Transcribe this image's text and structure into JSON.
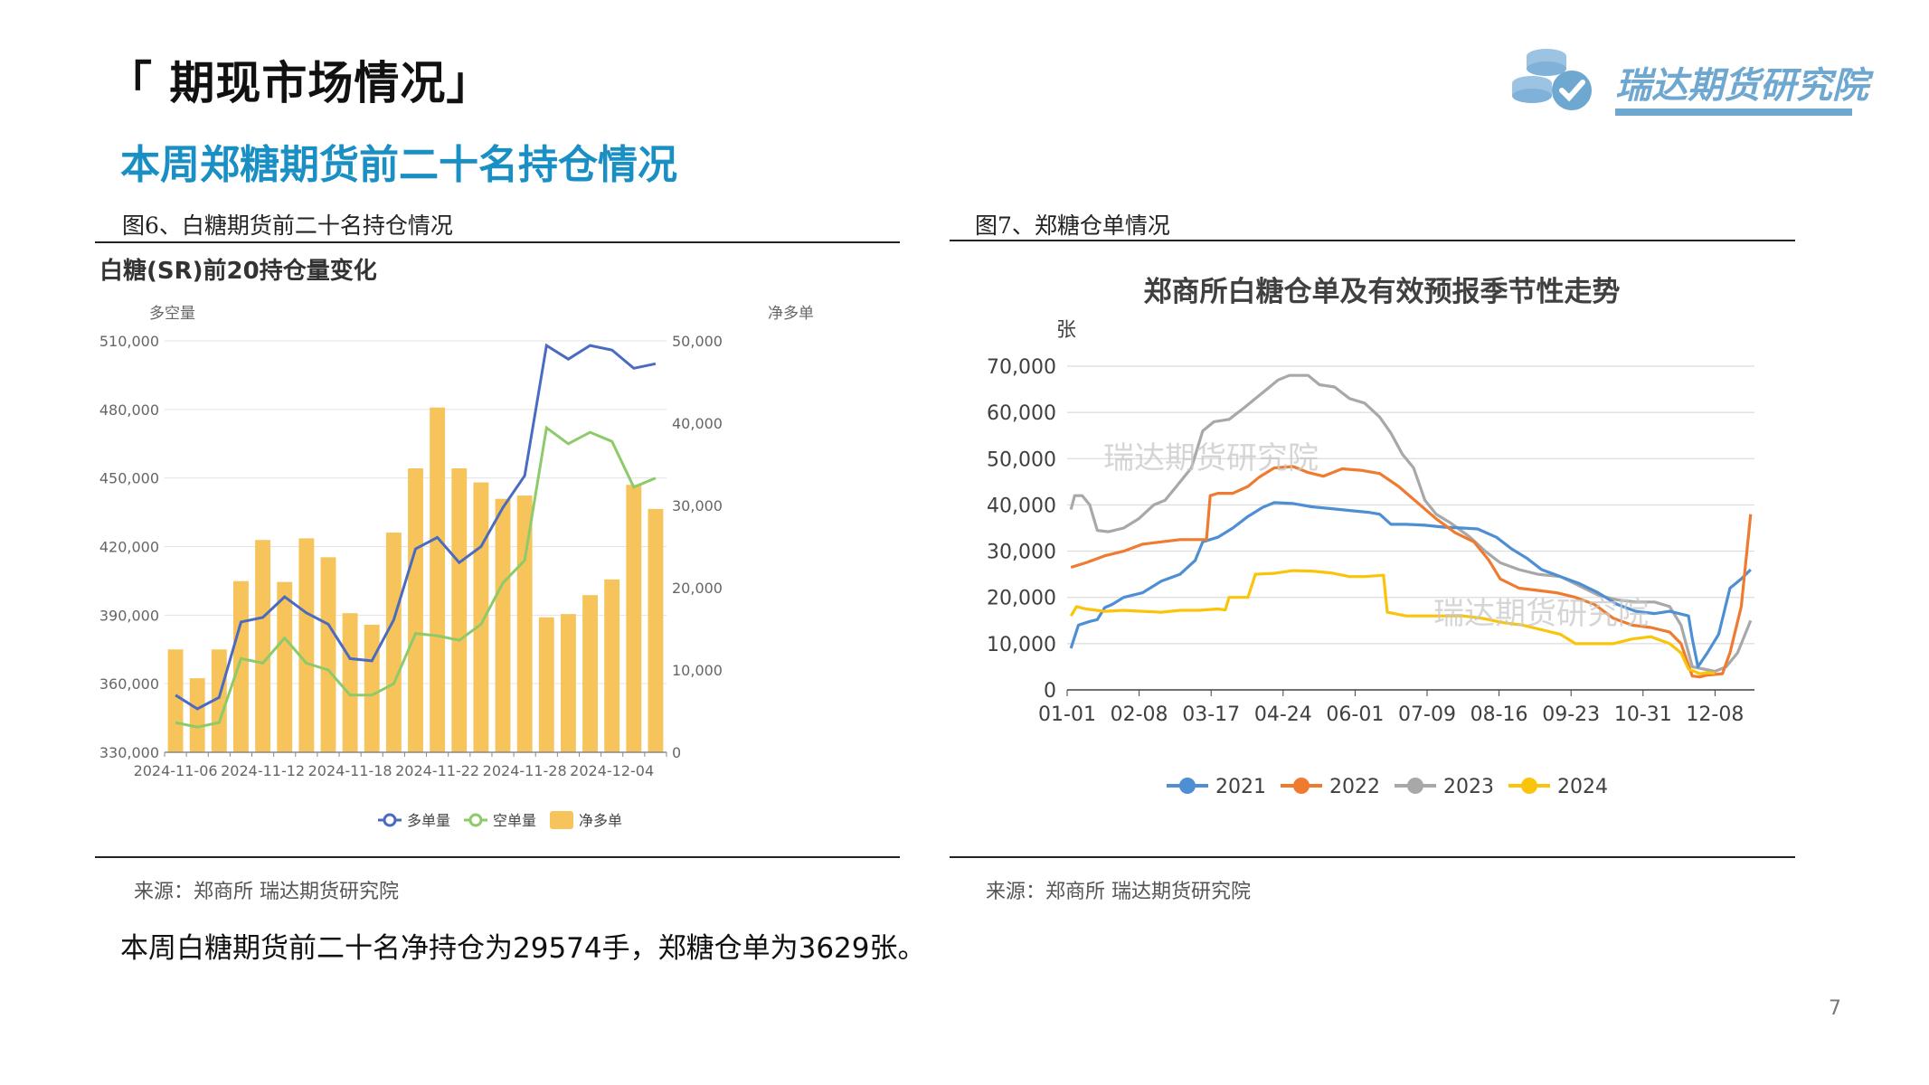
{
  "header": {
    "title": "「 期现市场情况」",
    "subtitle": "本周郑糖期货前二十名持仓情况",
    "logo_text": "瑞达期货研究院"
  },
  "left_figure": {
    "caption": "图6、白糖期货前二十名持仓情况",
    "source": "来源：郑商所   瑞达期货研究院"
  },
  "right_figure": {
    "caption": "图7、郑糖仓单情况",
    "source": "来源：郑商所  瑞达期货研究院",
    "watermark": "瑞达期货研究院"
  },
  "summary": "本周白糖期货前二十名净持仓为29574手，郑糖仓单为3629张。",
  "page_number": "7",
  "colors": {
    "accent": "#1a8fc4",
    "bar": "#f7c45b",
    "long": "#4a6bbf",
    "short": "#8dca6a",
    "y2021": "#4e8fd4",
    "y2022": "#ee7b30",
    "y2023": "#a8a8a8",
    "y2024": "#fac40a"
  },
  "chart_data": [
    {
      "type": "bar+line",
      "title": "白糖(SR)前20持仓量变化",
      "ylabel_left": "多空量",
      "ylabel_right": "净多单",
      "ylim_left": [
        330000,
        510000
      ],
      "ylim_right": [
        0,
        50000
      ],
      "yticks_left": [
        "510,000",
        "480,000",
        "450,000",
        "420,000",
        "390,000",
        "360,000",
        "330,000"
      ],
      "yticks_right": [
        "50,000",
        "40,000",
        "30,000",
        "20,000",
        "10,000",
        "0"
      ],
      "xtick_labels": [
        "2024-11-06",
        "2024-11-12",
        "2024-11-18",
        "2024-11-22",
        "2024-11-28",
        "2024-12-04"
      ],
      "legend": [
        "多单量",
        "空单量",
        "净多单"
      ],
      "series": [
        {
          "name": "多单量",
          "kind": "line",
          "axis": "left",
          "values": [
            355000,
            349000,
            354000,
            387000,
            389000,
            398000,
            391000,
            386000,
            371000,
            370000,
            388000,
            419000,
            424000,
            413000,
            420000,
            437000,
            451000,
            508000,
            502000,
            508000,
            506000,
            498000,
            500000
          ]
        },
        {
          "name": "空单量",
          "kind": "line",
          "axis": "left",
          "values": [
            343000,
            341000,
            343000,
            371000,
            369000,
            380000,
            369000,
            366000,
            355000,
            355000,
            360000,
            382000,
            381000,
            379000,
            386000,
            404000,
            414000,
            472000,
            465000,
            470000,
            466000,
            446000,
            450000
          ]
        },
        {
          "name": "净多单",
          "kind": "bar",
          "axis": "right",
          "values": [
            12500,
            9000,
            12500,
            20800,
            25800,
            20700,
            26000,
            23700,
            16900,
            15500,
            26700,
            34500,
            41900,
            34500,
            32800,
            30800,
            31200,
            16400,
            16800,
            19100,
            21000,
            32500,
            29574
          ]
        }
      ]
    },
    {
      "type": "line",
      "title": "郑商所白糖仓单及有效预报季节性走势",
      "ylabel": "张",
      "ylim": [
        0,
        70000
      ],
      "yticks": [
        "70,000",
        "60,000",
        "50,000",
        "40,000",
        "30,000",
        "20,000",
        "10,000",
        "0"
      ],
      "xtick_labels": [
        "01-01",
        "02-08",
        "03-17",
        "04-24",
        "06-01",
        "07-09",
        "08-16",
        "09-23",
        "10-31",
        "12-08"
      ],
      "x_range_days": [
        0,
        365
      ],
      "series": [
        {
          "name": "2021",
          "points": [
            [
              2,
              9000
            ],
            [
              6,
              14000
            ],
            [
              12,
              14800
            ],
            [
              16,
              15200
            ],
            [
              20,
              17800
            ],
            [
              24,
              18500
            ],
            [
              30,
              20000
            ],
            [
              40,
              21000
            ],
            [
              50,
              23500
            ],
            [
              60,
              25000
            ],
            [
              68,
              28000
            ],
            [
              72,
              32000
            ],
            [
              80,
              33000
            ],
            [
              88,
              35000
            ],
            [
              96,
              37500
            ],
            [
              104,
              39500
            ],
            [
              110,
              40500
            ],
            [
              120,
              40300
            ],
            [
              130,
              39600
            ],
            [
              140,
              39200
            ],
            [
              150,
              38800
            ],
            [
              160,
              38400
            ],
            [
              166,
              38000
            ],
            [
              172,
              35800
            ],
            [
              180,
              35800
            ],
            [
              190,
              35600
            ],
            [
              200,
              35200
            ],
            [
              210,
              35000
            ],
            [
              218,
              34800
            ],
            [
              228,
              33000
            ],
            [
              236,
              30500
            ],
            [
              244,
              28500
            ],
            [
              252,
              26000
            ],
            [
              262,
              24500
            ],
            [
              272,
              23000
            ],
            [
              282,
              21000
            ],
            [
              292,
              18500
            ],
            [
              302,
              17000
            ],
            [
              312,
              16500
            ],
            [
              320,
              17000
            ],
            [
              330,
              16000
            ],
            [
              332,
              11000
            ],
            [
              335,
              5000
            ],
            [
              340,
              8000
            ],
            [
              346,
              12000
            ],
            [
              352,
              22000
            ],
            [
              358,
              24000
            ],
            [
              363,
              26000
            ]
          ]
        },
        {
          "name": "2022",
          "points": [
            [
              2,
              26500
            ],
            [
              10,
              27500
            ],
            [
              20,
              29000
            ],
            [
              30,
              30000
            ],
            [
              40,
              31500
            ],
            [
              50,
              32000
            ],
            [
              60,
              32500
            ],
            [
              74,
              32500
            ],
            [
              76,
              42000
            ],
            [
              80,
              42500
            ],
            [
              88,
              42500
            ],
            [
              96,
              44000
            ],
            [
              102,
              46000
            ],
            [
              110,
              48000
            ],
            [
              120,
              48300
            ],
            [
              128,
              47000
            ],
            [
              136,
              46200
            ],
            [
              146,
              47800
            ],
            [
              156,
              47500
            ],
            [
              166,
              46800
            ],
            [
              176,
              44000
            ],
            [
              186,
              40500
            ],
            [
              196,
              37000
            ],
            [
              206,
              34000
            ],
            [
              216,
              32000
            ],
            [
              224,
              28000
            ],
            [
              230,
              24000
            ],
            [
              240,
              22000
            ],
            [
              250,
              21500
            ],
            [
              260,
              21000
            ],
            [
              270,
              20000
            ],
            [
              280,
              18500
            ],
            [
              290,
              15500
            ],
            [
              300,
              14000
            ],
            [
              310,
              13500
            ],
            [
              320,
              12500
            ],
            [
              326,
              10000
            ],
            [
              332,
              3000
            ],
            [
              336,
              2800
            ],
            [
              340,
              3200
            ],
            [
              348,
              3500
            ],
            [
              352,
              8000
            ],
            [
              358,
              18000
            ],
            [
              363,
              38000
            ]
          ]
        },
        {
          "name": "2023",
          "points": [
            [
              2,
              39000
            ],
            [
              4,
              42000
            ],
            [
              8,
              42000
            ],
            [
              12,
              40000
            ],
            [
              16,
              34500
            ],
            [
              22,
              34200
            ],
            [
              30,
              35000
            ],
            [
              38,
              37000
            ],
            [
              46,
              40000
            ],
            [
              52,
              41000
            ],
            [
              58,
              44000
            ],
            [
              66,
              48000
            ],
            [
              72,
              56000
            ],
            [
              78,
              58000
            ],
            [
              86,
              58500
            ],
            [
              94,
              61000
            ],
            [
              100,
              63000
            ],
            [
              106,
              65000
            ],
            [
              112,
              67000
            ],
            [
              118,
              68000
            ],
            [
              128,
              68000
            ],
            [
              134,
              66000
            ],
            [
              142,
              65500
            ],
            [
              150,
              63000
            ],
            [
              158,
              62000
            ],
            [
              166,
              59000
            ],
            [
              172,
              55500
            ],
            [
              178,
              51000
            ],
            [
              184,
              48000
            ],
            [
              190,
              41000
            ],
            [
              196,
              38000
            ],
            [
              204,
              36000
            ],
            [
              214,
              33000
            ],
            [
              222,
              30000
            ],
            [
              230,
              27500
            ],
            [
              240,
              26000
            ],
            [
              250,
              25000
            ],
            [
              262,
              24500
            ],
            [
              272,
              22500
            ],
            [
              282,
              20500
            ],
            [
              292,
              19500
            ],
            [
              302,
              19000
            ],
            [
              312,
              19000
            ],
            [
              320,
              18000
            ],
            [
              326,
              14000
            ],
            [
              332,
              5000
            ],
            [
              338,
              4500
            ],
            [
              344,
              4000
            ],
            [
              350,
              5000
            ],
            [
              356,
              8000
            ],
            [
              363,
              15000
            ]
          ]
        },
        {
          "name": "2024",
          "points": [
            [
              2,
              16000
            ],
            [
              5,
              18000
            ],
            [
              10,
              17500
            ],
            [
              20,
              17000
            ],
            [
              30,
              17200
            ],
            [
              40,
              17000
            ],
            [
              50,
              16800
            ],
            [
              60,
              17200
            ],
            [
              70,
              17200
            ],
            [
              80,
              17500
            ],
            [
              84,
              17300
            ],
            [
              86,
              20000
            ],
            [
              96,
              20000
            ],
            [
              100,
              25000
            ],
            [
              110,
              25200
            ],
            [
              120,
              25800
            ],
            [
              130,
              25700
            ],
            [
              140,
              25300
            ],
            [
              150,
              24500
            ],
            [
              158,
              24500
            ],
            [
              168,
              24800
            ],
            [
              170,
              16800
            ],
            [
              180,
              16000
            ],
            [
              190,
              16000
            ],
            [
              200,
              16000
            ],
            [
              210,
              16000
            ],
            [
              220,
              15500
            ],
            [
              232,
              14500
            ],
            [
              242,
              14000
            ],
            [
              252,
              13000
            ],
            [
              262,
              12000
            ],
            [
              270,
              10000
            ],
            [
              280,
              10000
            ],
            [
              290,
              10000
            ],
            [
              300,
              11000
            ],
            [
              310,
              11500
            ],
            [
              320,
              10000
            ],
            [
              326,
              8000
            ],
            [
              330,
              4500
            ],
            [
              336,
              3500
            ],
            [
              340,
              3700
            ],
            [
              344,
              3629
            ]
          ]
        }
      ]
    }
  ]
}
